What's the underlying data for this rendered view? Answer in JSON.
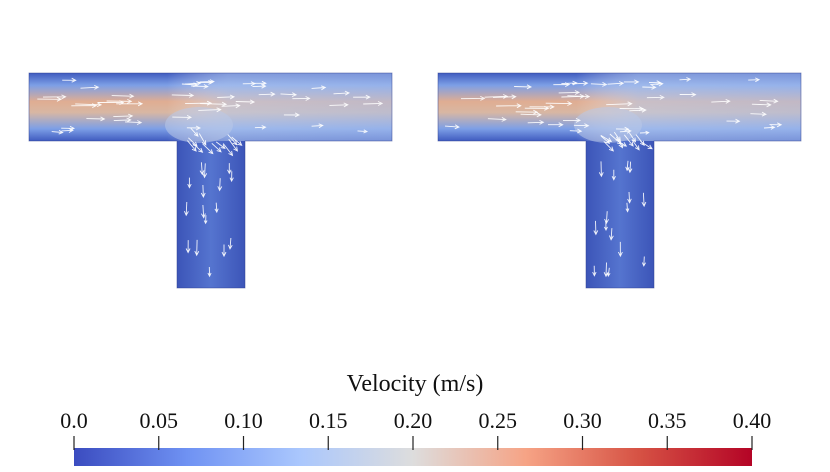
{
  "figure": {
    "panels": [
      {
        "id": "left",
        "name": "t-junction-left"
      },
      {
        "id": "right",
        "name": "t-junction-right"
      }
    ]
  },
  "colorbar": {
    "title": "Velocity (m/s)",
    "min": 0.0,
    "max": 0.4,
    "ticks": [
      "0.0",
      "0.05",
      "0.10",
      "0.15",
      "0.20",
      "0.25",
      "0.30",
      "0.35",
      "0.40"
    ],
    "colors": [
      "#3b4cc0",
      "#6f92f3",
      "#aac7fd",
      "#dddddd",
      "#f6a385",
      "#d65244",
      "#b40426"
    ]
  },
  "colors": {
    "pipe_low": "#3f5bbf",
    "pipe_mid": "#8fb3f0",
    "pipe_high": "#e0ad92",
    "arrow": "#ffffff"
  }
}
